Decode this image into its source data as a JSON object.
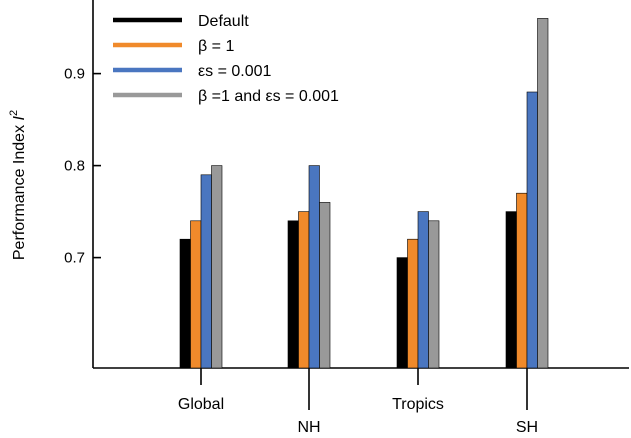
{
  "chart_data": {
    "type": "bar",
    "ylabel": "Performance Index",
    "ylabel_symbol": "I",
    "ylabel_superscript": "2",
    "ylim": [
      0.58,
      0.98
    ],
    "yticks": [
      0.7,
      0.8,
      0.9
    ],
    "ytick_labels": [
      "0.7",
      "0.8",
      "0.9"
    ],
    "categories": [
      "Global",
      "NH",
      "Tropics",
      "SH"
    ],
    "legend_position": "top-left",
    "series": [
      {
        "name": "Default",
        "color": "#000000",
        "values": [
          0.72,
          0.74,
          0.7,
          0.75
        ]
      },
      {
        "name": "β = 1",
        "color": "#f08a2b",
        "values": [
          0.74,
          0.75,
          0.72,
          0.77
        ]
      },
      {
        "name": "εs = 0.001",
        "color": "#4a76c0",
        "values": [
          0.79,
          0.8,
          0.75,
          0.88
        ]
      },
      {
        "name": "β =1 and εs = 0.001",
        "color": "#999999",
        "values": [
          0.8,
          0.76,
          0.74,
          0.96
        ]
      }
    ]
  }
}
